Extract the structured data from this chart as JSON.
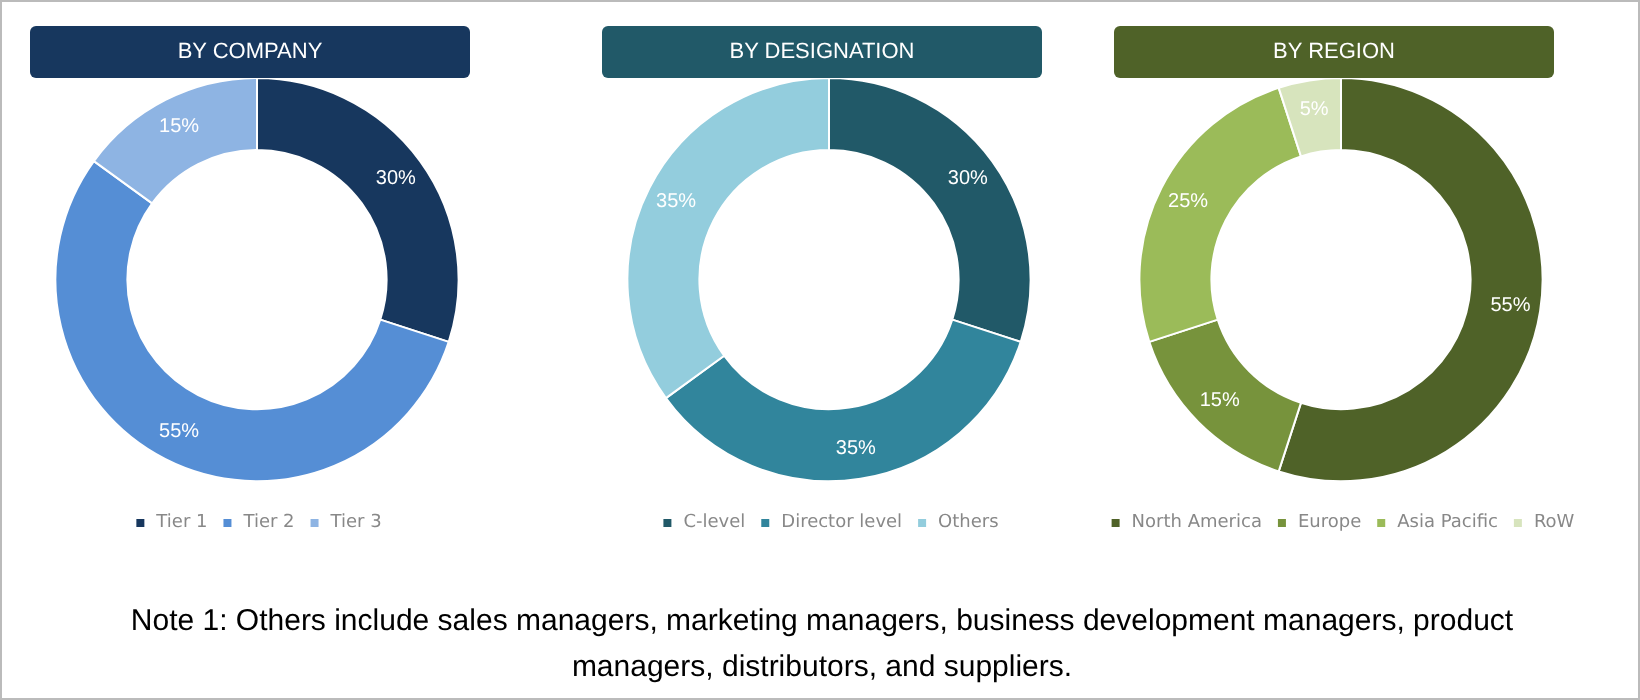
{
  "chart_data": [
    {
      "type": "donut",
      "title": "BY COMPANY",
      "categories": [
        "Tier 1",
        "Tier 2",
        "Tier 3"
      ],
      "values": [
        30,
        55,
        15
      ],
      "colors": [
        "#17375e",
        "#558ed5",
        "#8eb4e3"
      ],
      "value_labels": [
        "30%",
        "55%",
        "15%"
      ],
      "legend": "bottom"
    },
    {
      "type": "donut",
      "title": "BY DESIGNATION",
      "categories": [
        "C-level",
        "Director level",
        "Others"
      ],
      "values": [
        30,
        35,
        35
      ],
      "colors": [
        "#215968",
        "#31859c",
        "#93cddd"
      ],
      "value_labels": [
        "30%",
        "35%",
        "35%"
      ],
      "legend": "bottom"
    },
    {
      "type": "donut",
      "title": "BY REGION",
      "categories": [
        "North America",
        "Europe",
        "Asia Pacific",
        "RoW"
      ],
      "values": [
        55,
        15,
        25,
        5
      ],
      "colors": [
        "#4f6228",
        "#77933c",
        "#9bbb59",
        "#d7e4bd"
      ],
      "value_labels": [
        "55%",
        "15%",
        "25%",
        "5%"
      ],
      "legend": "bottom"
    },
    {
      "type": "other",
      "annotations": [
        "Note 1: Others include sales managers, marketing managers, business development managers, product managers, distributors, and suppliers."
      ]
    }
  ]
}
